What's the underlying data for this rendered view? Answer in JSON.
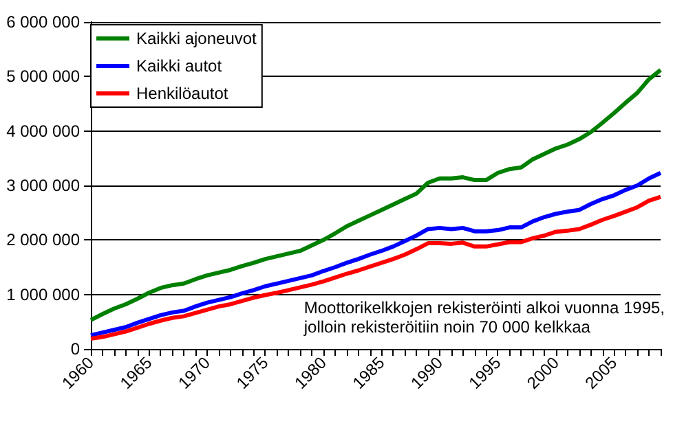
{
  "chart_data": {
    "type": "line",
    "categories": [
      "1960",
      null,
      null,
      null,
      null,
      "1965",
      null,
      null,
      null,
      null,
      "1970",
      null,
      null,
      null,
      null,
      "1975",
      null,
      null,
      null,
      null,
      "1980",
      null,
      null,
      null,
      null,
      "1985",
      null,
      null,
      null,
      null,
      "1990",
      null,
      null,
      null,
      null,
      "1995",
      null,
      null,
      null,
      null,
      "2000",
      null,
      null,
      null,
      null,
      "2005",
      null,
      null,
      null,
      null
    ],
    "series": [
      {
        "name": "Kaikki ajoneuvot",
        "color": "#008000",
        "values": [
          530000,
          640000,
          740000,
          820000,
          920000,
          1030000,
          1120000,
          1170000,
          1200000,
          1280000,
          1350000,
          1400000,
          1450000,
          1520000,
          1580000,
          1650000,
          1700000,
          1750000,
          1800000,
          1900000,
          2000000,
          2120000,
          2250000,
          2350000,
          2450000,
          2550000,
          2650000,
          2750000,
          2850000,
          3050000,
          3130000,
          3130000,
          3150000,
          3100000,
          3100000,
          3230000,
          3300000,
          3330000,
          3480000,
          3580000,
          3680000,
          3750000,
          3850000,
          3980000,
          4150000,
          4330000,
          4520000,
          4700000,
          4950000,
          5120000
        ]
      },
      {
        "name": "Kaikki autot",
        "color": "#0000ff",
        "values": [
          250000,
          300000,
          350000,
          400000,
          480000,
          550000,
          620000,
          670000,
          700000,
          780000,
          850000,
          900000,
          950000,
          1020000,
          1080000,
          1150000,
          1200000,
          1250000,
          1300000,
          1350000,
          1430000,
          1500000,
          1580000,
          1650000,
          1730000,
          1800000,
          1880000,
          1980000,
          2080000,
          2200000,
          2220000,
          2200000,
          2220000,
          2160000,
          2160000,
          2180000,
          2230000,
          2230000,
          2340000,
          2420000,
          2480000,
          2520000,
          2550000,
          2660000,
          2750000,
          2820000,
          2920000,
          3000000,
          3130000,
          3230000
        ]
      },
      {
        "name": "Henkilöautot",
        "color": "#ff0000",
        "values": [
          190000,
          220000,
          270000,
          320000,
          390000,
          460000,
          520000,
          570000,
          600000,
          660000,
          720000,
          780000,
          820000,
          880000,
          940000,
          990000,
          1030000,
          1080000,
          1130000,
          1180000,
          1240000,
          1310000,
          1380000,
          1440000,
          1510000,
          1580000,
          1650000,
          1730000,
          1830000,
          1940000,
          1940000,
          1930000,
          1950000,
          1880000,
          1880000,
          1920000,
          1960000,
          1960000,
          2030000,
          2080000,
          2150000,
          2170000,
          2200000,
          2280000,
          2370000,
          2440000,
          2520000,
          2600000,
          2720000,
          2790000
        ]
      }
    ],
    "ylim": [
      0,
      6000000
    ],
    "yticks": [
      0,
      {
        "value": 1000000,
        "label": "1 000 000"
      },
      {
        "value": 2000000,
        "label": "2 000 000"
      },
      {
        "value": 3000000,
        "label": "3 000 000"
      },
      {
        "value": 4000000,
        "label": "4 000 000"
      },
      {
        "value": 5000000,
        "label": "5 000 000"
      },
      {
        "value": 6000000,
        "label": "6 000 000"
      }
    ],
    "grid": "y",
    "legend": "top left",
    "marker": "none",
    "line_style": "solid",
    "annotations": [
      "Moottorikelkkojen rekisteröinti alkoi vuonna 1995,\njolloin rekisteröitiin noin 70 000 kelkkaa"
    ]
  }
}
